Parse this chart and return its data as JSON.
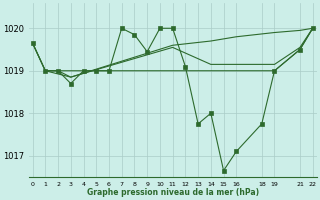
{
  "title": "Graphe pression niveau de la mer (hPa)",
  "bg_color": "#cceee8",
  "grid_color": "#aaccc8",
  "line_color": "#2d6a2d",
  "ylim": [
    1016.5,
    1020.6
  ],
  "yticks": [
    1017,
    1018,
    1019,
    1020
  ],
  "xlim": [
    -0.3,
    22.3
  ],
  "x_tick_positions": [
    0,
    1,
    2,
    3,
    4,
    5,
    6,
    7,
    8,
    9,
    10,
    11,
    12,
    13,
    14,
    15,
    16,
    18,
    19,
    21,
    22
  ],
  "x_tick_labels": [
    "0",
    "1",
    "2",
    "3",
    "4",
    "5",
    "6",
    "7",
    "8",
    "9",
    "10",
    "11",
    "12",
    "13",
    "14",
    "15",
    "16",
    "18",
    "19",
    "21",
    "22"
  ],
  "series_main": {
    "x": [
      0,
      1,
      2,
      3,
      4,
      5,
      6,
      7,
      8,
      9,
      10,
      11,
      12,
      13,
      14,
      15,
      16,
      18,
      19,
      21,
      22
    ],
    "y": [
      1019.65,
      1019.0,
      1019.0,
      1018.7,
      1019.0,
      1019.0,
      1019.0,
      1020.0,
      1019.85,
      1019.45,
      1020.0,
      1020.0,
      1019.1,
      1017.75,
      1018.0,
      1016.65,
      1017.1,
      1017.75,
      1019.0,
      1019.5,
      1020.0
    ]
  },
  "series_slow_rise": {
    "x": [
      0,
      1,
      2,
      3,
      11,
      12,
      14,
      16,
      19,
      21,
      22
    ],
    "y": [
      1019.65,
      1019.0,
      1019.0,
      1019.0,
      1019.0,
      1019.0,
      1019.0,
      1019.0,
      1019.0,
      1019.5,
      1020.0
    ]
  },
  "series_mid_rise": {
    "x": [
      1,
      3,
      11,
      14,
      16,
      19,
      21,
      22
    ],
    "y": [
      1019.0,
      1018.85,
      1019.55,
      1019.15,
      1019.15,
      1019.15,
      1019.55,
      1020.0
    ]
  },
  "series_upper": {
    "x": [
      0,
      1,
      2,
      3,
      11,
      14,
      16,
      19,
      21,
      22
    ],
    "y": [
      1019.65,
      1019.0,
      1019.0,
      1018.85,
      1019.6,
      1019.7,
      1019.8,
      1019.9,
      1019.95,
      1020.0
    ]
  }
}
